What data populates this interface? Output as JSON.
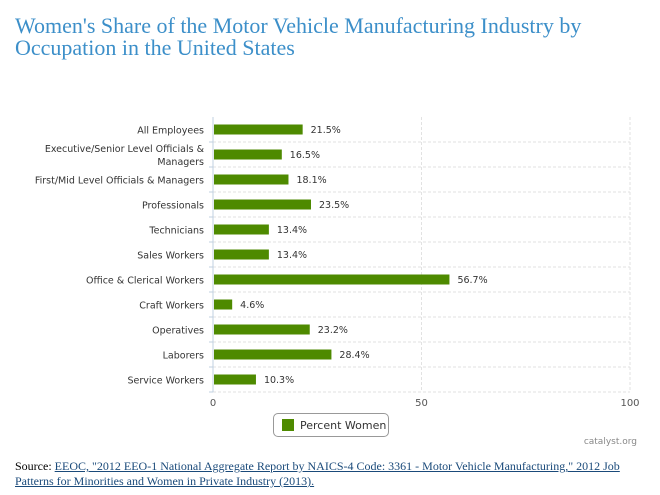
{
  "chart_data": {
    "type": "bar",
    "orientation": "horizontal",
    "title": "Women's Share of the Motor Vehicle Manufacturing Industry by Occupation in the United States",
    "categories": [
      [
        "All Employees"
      ],
      [
        "Executive/Senior Level Officials &",
        "Managers"
      ],
      [
        "First/Mid Level Officials & Managers"
      ],
      [
        "Professionals"
      ],
      [
        "Technicians"
      ],
      [
        "Sales Workers"
      ],
      [
        "Office & Clerical Workers"
      ],
      [
        "Craft Workers"
      ],
      [
        "Operatives"
      ],
      [
        "Laborers"
      ],
      [
        "Service Workers"
      ]
    ],
    "series": [
      {
        "name": "Percent Women",
        "values": [
          21.5,
          16.5,
          18.1,
          23.5,
          13.4,
          13.4,
          56.7,
          4.6,
          23.2,
          28.4,
          10.3
        ],
        "color": "#4e8a00"
      }
    ],
    "data_labels": [
      "21.5%",
      "16.5%",
      "18.1%",
      "23.5%",
      "13.4%",
      "13.4%",
      "56.7%",
      "4.6%",
      "23.2%",
      "28.4%",
      "10.3%"
    ],
    "xlim": [
      0,
      100
    ],
    "xticks": [
      "0",
      "50",
      "100"
    ],
    "grid": true,
    "legend": "bottom-center"
  },
  "credit": "catalyst.org",
  "source": {
    "prefix": "Source: ",
    "link_text": "EEOC, \"2012 EEO-1 National Aggregate Report by NAICS-4 Code: 3361 - Motor Vehicle Manufacturing,\" 2012 Job Patterns for Minorities and Women in Private Industry (2013)."
  }
}
